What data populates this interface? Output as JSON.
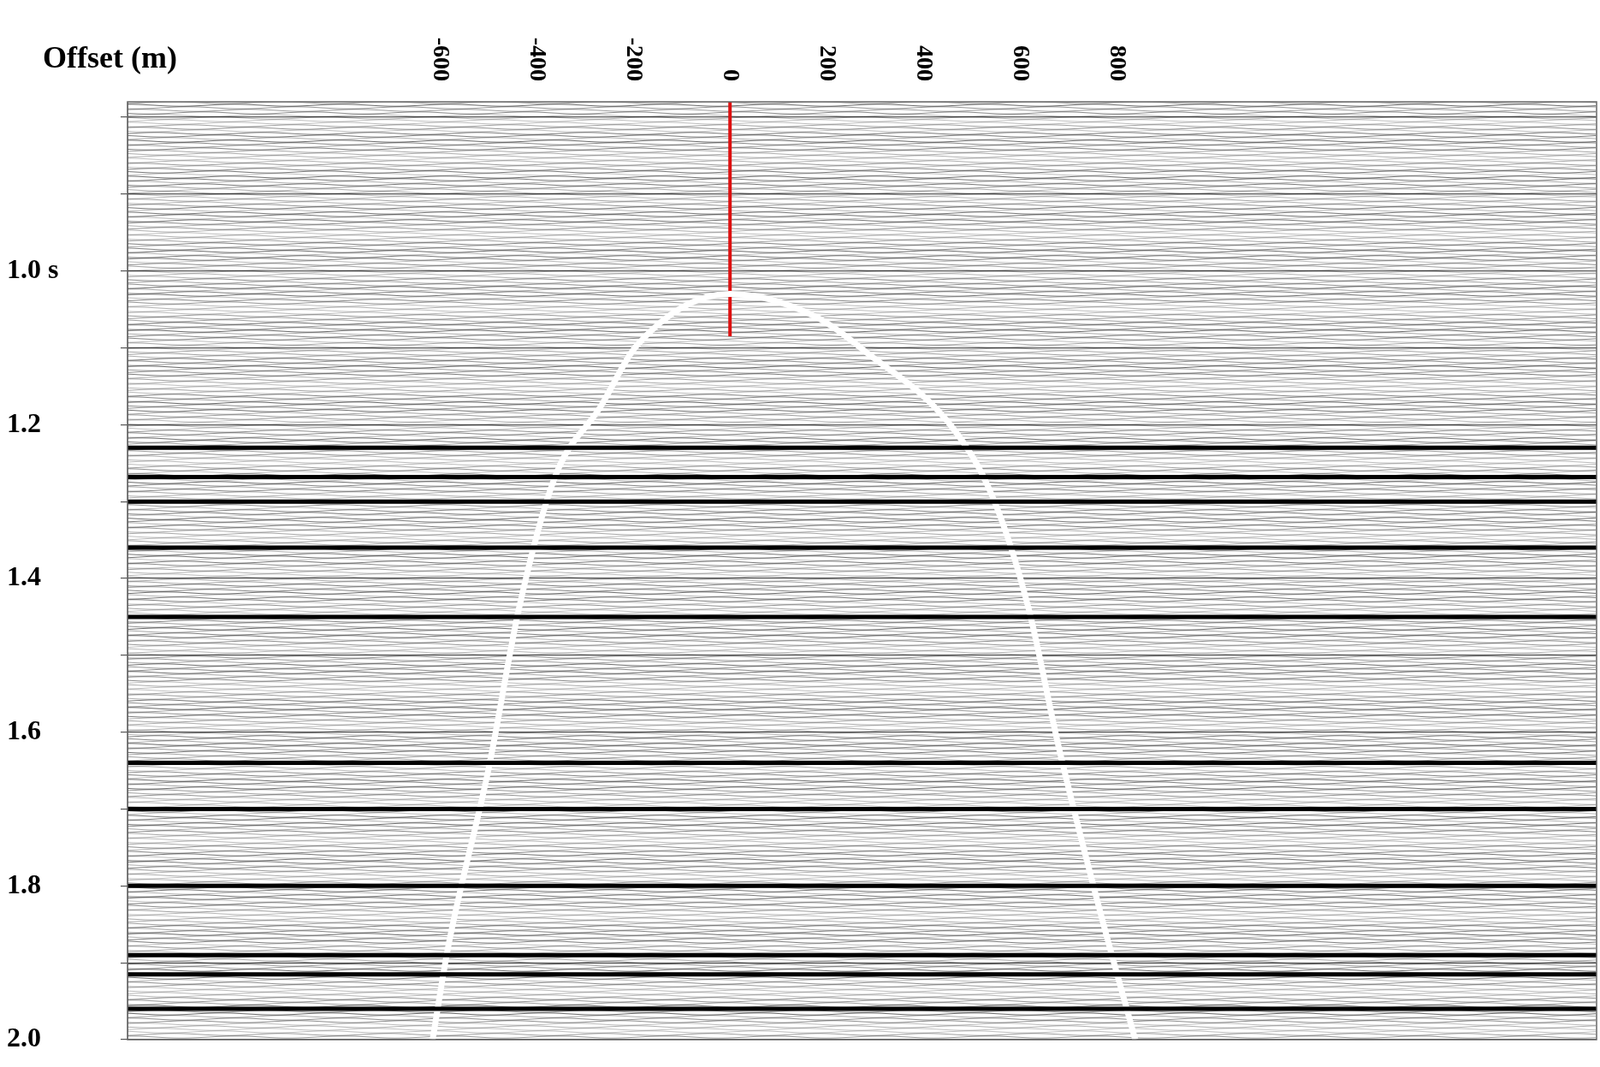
{
  "chart_data": {
    "type": "line",
    "title": "Offset (m)",
    "xlim": [
      -1246,
      1792
    ],
    "xticks": [
      -600,
      -400,
      -200,
      0,
      200,
      400,
      600,
      800
    ],
    "ylim": [
      0.78,
      2.0
    ],
    "yticks": [
      {
        "value": 0.8,
        "label": null
      },
      {
        "value": 0.9,
        "label": null
      },
      {
        "value": 1.0,
        "label": "1.0 s"
      },
      {
        "value": 1.1,
        "label": null
      },
      1.2,
      {
        "value": 1.3,
        "label": null
      },
      1.4,
      {
        "value": 1.5,
        "label": null
      },
      1.6,
      {
        "value": 1.7,
        "label": null
      },
      1.8,
      {
        "value": 1.9,
        "label": null
      },
      {
        "value": 2.0,
        "label": "2.0"
      }
    ],
    "grid": true,
    "reflector_times": [
      1.23,
      1.268,
      1.3,
      1.36,
      1.45,
      1.64,
      1.7,
      1.8,
      1.89,
      1.915,
      1.96
    ],
    "reflector_color": "#000000",
    "series": [
      {
        "color": "#ffffff",
        "line_style": "solid",
        "x": [
          -615,
          -583,
          -499,
          -436,
          -362,
          -267,
          -194,
          0,
          175,
          280,
          459,
          543,
          617,
          680,
          764,
          838
        ],
        "values": [
          2.0,
          1.88,
          1.647,
          1.438,
          1.268,
          1.176,
          1.098,
          1.03,
          1.059,
          1.105,
          1.203,
          1.294,
          1.438,
          1.62,
          1.83,
          2.0
        ]
      },
      {
        "color": "#dd1111",
        "line_style": "solid",
        "x": [
          0,
          0
        ],
        "values": [
          0.78,
          1.085
        ]
      }
    ]
  }
}
